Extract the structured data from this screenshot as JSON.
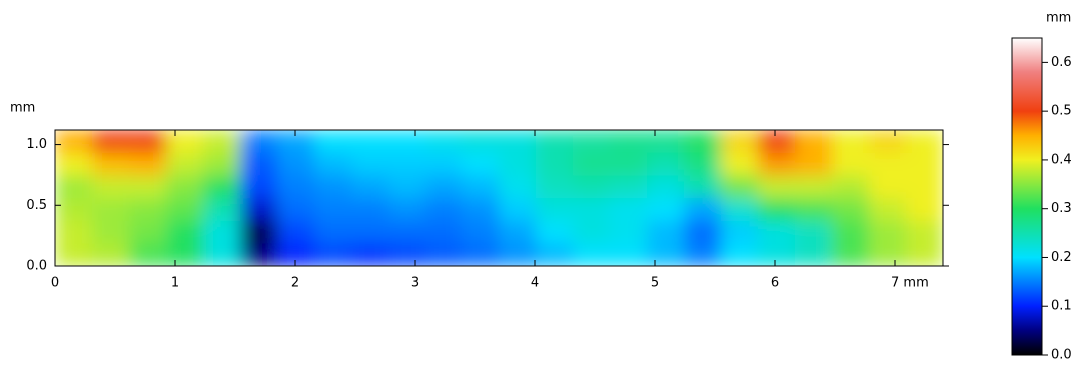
{
  "chart_data": {
    "type": "heatmap",
    "xlim": [
      0,
      7.4
    ],
    "ylim": [
      0,
      1.12
    ],
    "xticks": [
      0,
      1,
      2,
      3,
      4,
      5,
      6,
      {
        "value": 7,
        "label": "7 mm"
      }
    ],
    "yticks": [
      {
        "value": 0,
        "label": "0.0"
      },
      {
        "value": 0.5,
        "label": "0.5"
      },
      {
        "value": 1,
        "label": "1.0"
      }
    ],
    "ylabel": "mm",
    "zlabel": "mm",
    "zlim": [
      0,
      0.65
    ],
    "zticks": [
      {
        "value": 0,
        "label": "0.0"
      },
      0.1,
      0.2,
      0.3,
      0.4,
      0.5,
      0.6
    ],
    "colormap": [
      [
        0,
        "#000000"
      ],
      [
        0.05,
        "#000080"
      ],
      [
        0.1,
        "#0020ff"
      ],
      [
        0.2,
        "#00e0ff"
      ],
      [
        0.3,
        "#20e060"
      ],
      [
        0.4,
        "#f0f020"
      ],
      [
        0.45,
        "#ffb000"
      ],
      [
        0.5,
        "#f04010"
      ],
      [
        0.58,
        "#f08080"
      ],
      [
        0.65,
        "#ffffff"
      ]
    ],
    "z": [
      [
        0.45,
        0.5,
        0.5,
        0.4,
        0.38,
        0.15,
        0.17,
        0.2,
        0.2,
        0.2,
        0.21,
        0.22,
        0.22,
        0.25,
        0.26,
        0.27,
        0.27,
        0.3,
        0.42,
        0.5,
        0.45,
        0.4,
        0.42,
        0.4
      ],
      [
        0.4,
        0.44,
        0.45,
        0.38,
        0.36,
        0.13,
        0.16,
        0.18,
        0.19,
        0.19,
        0.19,
        0.2,
        0.22,
        0.25,
        0.27,
        0.27,
        0.25,
        0.28,
        0.4,
        0.46,
        0.45,
        0.4,
        0.4,
        0.4
      ],
      [
        0.36,
        0.38,
        0.38,
        0.35,
        0.3,
        0.12,
        0.15,
        0.16,
        0.17,
        0.18,
        0.17,
        0.18,
        0.21,
        0.24,
        0.25,
        0.24,
        0.22,
        0.25,
        0.34,
        0.38,
        0.38,
        0.37,
        0.4,
        0.4
      ],
      [
        0.37,
        0.36,
        0.35,
        0.33,
        0.25,
        0.08,
        0.14,
        0.15,
        0.15,
        0.16,
        0.15,
        0.16,
        0.19,
        0.22,
        0.22,
        0.21,
        0.2,
        0.17,
        0.23,
        0.3,
        0.32,
        0.34,
        0.38,
        0.4
      ],
      [
        0.38,
        0.36,
        0.34,
        0.3,
        0.22,
        0.03,
        0.12,
        0.14,
        0.14,
        0.14,
        0.14,
        0.15,
        0.17,
        0.2,
        0.22,
        0.21,
        0.18,
        0.14,
        0.19,
        0.22,
        0.24,
        0.32,
        0.36,
        0.38
      ],
      [
        0.38,
        0.37,
        0.32,
        0.3,
        0.22,
        0.05,
        0.1,
        0.12,
        0.11,
        0.12,
        0.13,
        0.14,
        0.16,
        0.18,
        0.2,
        0.2,
        0.18,
        0.15,
        0.2,
        0.22,
        0.24,
        0.32,
        0.36,
        0.38
      ]
    ]
  }
}
